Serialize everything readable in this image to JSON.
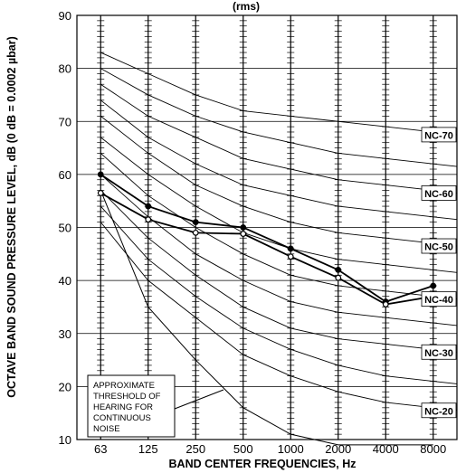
{
  "chart_data": {
    "type": "line",
    "title_fragment": "(rms)",
    "xlabel": "BAND CENTER FREQUENCIES, Hz",
    "ylabel": "OCTAVE BAND SOUND PRESSURE LEVEL, dB (0 dB = 0.0002 µbar)",
    "x_categories": [
      "63",
      "125",
      "250",
      "500",
      "1000",
      "2000",
      "4000",
      "8000"
    ],
    "ylim": [
      10,
      90
    ],
    "yticks": [
      10,
      20,
      30,
      40,
      50,
      60,
      70,
      80,
      90
    ],
    "grid": true,
    "nc_curves": [
      {
        "level": 20,
        "label": "NC-20",
        "values": [
          51,
          40,
          33,
          26,
          22,
          19,
          17,
          16
        ]
      },
      {
        "level": 25,
        "label": "",
        "values": [
          54,
          44,
          37,
          31,
          27,
          24,
          22,
          21
        ]
      },
      {
        "level": 30,
        "label": "NC-30",
        "values": [
          57,
          48,
          41,
          35,
          31,
          29,
          28,
          27
        ]
      },
      {
        "level": 35,
        "label": "",
        "values": [
          60,
          52,
          45,
          40,
          36,
          34,
          33,
          32
        ]
      },
      {
        "level": 40,
        "label": "NC-40",
        "values": [
          64,
          56,
          50,
          45,
          41,
          39,
          38,
          37
        ]
      },
      {
        "level": 45,
        "label": "",
        "values": [
          67,
          60,
          54,
          49,
          46,
          44,
          43,
          42
        ]
      },
      {
        "level": 50,
        "label": "NC-50",
        "values": [
          71,
          64,
          58,
          54,
          51,
          49,
          48,
          47
        ]
      },
      {
        "level": 55,
        "label": "",
        "values": [
          74,
          67,
          62,
          58,
          56,
          54,
          53,
          52
        ]
      },
      {
        "level": 60,
        "label": "NC-60",
        "values": [
          77,
          71,
          67,
          63,
          61,
          59,
          58,
          57
        ]
      },
      {
        "level": 65,
        "label": "",
        "values": [
          80,
          75,
          71,
          68,
          66,
          64,
          63,
          62
        ]
      },
      {
        "level": 70,
        "label": "NC-70",
        "values": [
          83,
          79,
          75,
          72,
          71,
          70,
          69,
          68
        ]
      }
    ],
    "threshold": {
      "values": [
        57,
        35,
        25,
        16,
        11,
        9,
        9,
        9
      ],
      "annotation": [
        "APPROXIMATE",
        "THRESHOLD OF",
        "HEARING FOR",
        "CONTINUOUS",
        "NOISE"
      ]
    },
    "series": [
      {
        "marker": "filled",
        "values": [
          60,
          54,
          51,
          50,
          46,
          42,
          36,
          39
        ]
      },
      {
        "marker": "open",
        "values": [
          56.5,
          51.5,
          49,
          48.8,
          44.5,
          40.5,
          35.5,
          37
        ]
      }
    ]
  }
}
